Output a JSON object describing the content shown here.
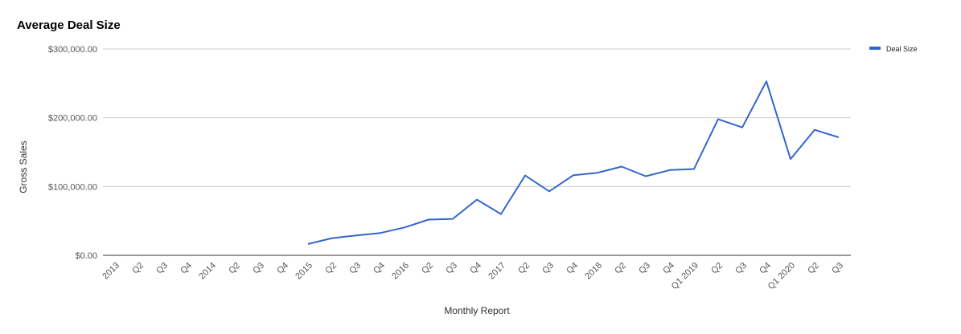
{
  "chart_data": {
    "type": "line",
    "title": "Average Deal Size",
    "xlabel": "Monthly Report",
    "ylabel": "Gross Sales",
    "ylim": [
      0,
      300000
    ],
    "yticks": [
      "$0.00",
      "$100,000.00",
      "$200,000.00",
      "$300,000.00"
    ],
    "ytick_values": [
      0,
      100000,
      200000,
      300000
    ],
    "grid": true,
    "legend_position": "top-right",
    "line_color": "#3366cc",
    "categories": [
      "2013",
      "Q2",
      "Q3",
      "Q4",
      "2014",
      "Q2",
      "Q3",
      "Q4",
      "2015",
      "Q2",
      "Q3",
      "Q4",
      "2016",
      "Q2",
      "Q3",
      "Q4",
      "2017",
      "Q2",
      "Q3",
      "Q4",
      "2018",
      "Q2",
      "Q3",
      "Q4",
      "Q1 2019",
      "Q2",
      "Q3",
      "Q4",
      "Q1 2020",
      "Q2",
      "Q3"
    ],
    "series": [
      {
        "name": "Deal Size",
        "values": [
          null,
          null,
          null,
          null,
          null,
          null,
          null,
          null,
          16500,
          25000,
          29000,
          32500,
          40500,
          52000,
          53000,
          81000,
          60000,
          116000,
          93000,
          116500,
          120000,
          129000,
          115000,
          124000,
          125500,
          198000,
          186000,
          253000,
          140000,
          182500,
          171500
        ]
      }
    ]
  }
}
